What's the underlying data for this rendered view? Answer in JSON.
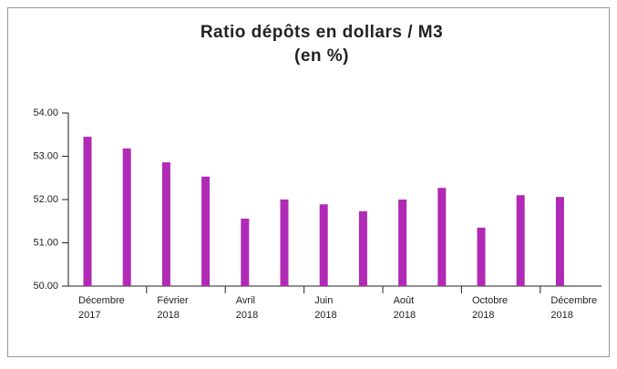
{
  "chart_data": {
    "type": "bar",
    "title": "Ratio dépôts en dollars / M3",
    "subtitle": "(en %)",
    "categories": [
      "Décembre 2017",
      null,
      "Février 2018",
      null,
      "Avril 2018",
      null,
      "Juin 2018",
      null,
      "Août 2018",
      null,
      "Octobre 2018",
      null,
      "Décembre 2018"
    ],
    "values": [
      53.45,
      53.18,
      52.86,
      52.53,
      51.56,
      52.0,
      51.89,
      51.73,
      52.0,
      52.27,
      51.35,
      52.1,
      52.06
    ],
    "color": "#b02ab5",
    "ylim": [
      50,
      54
    ],
    "yticks": [
      {
        "value": 50,
        "label": "50.00"
      },
      {
        "value": 51,
        "label": "51.00"
      },
      {
        "value": 52,
        "label": "52.00"
      },
      {
        "value": 53,
        "label": "53.00"
      },
      {
        "value": 54,
        "label": "54.00"
      }
    ],
    "grid": false
  }
}
